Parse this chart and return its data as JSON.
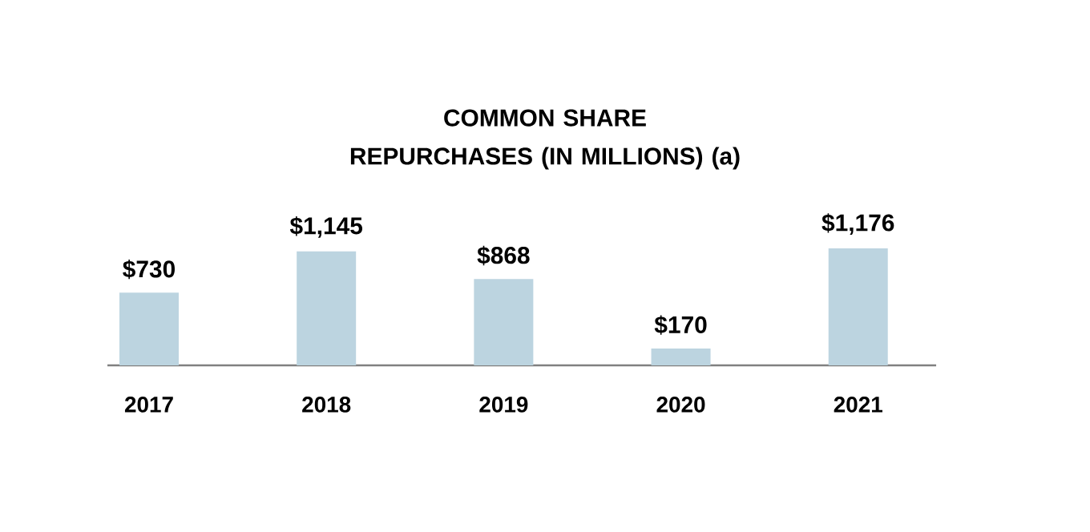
{
  "chart_data": {
    "type": "bar",
    "title": "COMMON SHARE REPURCHASES (IN MILLIONS) (a)",
    "categories": [
      "2017",
      "2018",
      "2019",
      "2020",
      "2021"
    ],
    "values": [
      730,
      1145,
      868,
      170,
      1176
    ],
    "value_labels": [
      "$730",
      "$1,145",
      "$868",
      "$170",
      "$1,176"
    ],
    "color": "#bcd4e0"
  }
}
